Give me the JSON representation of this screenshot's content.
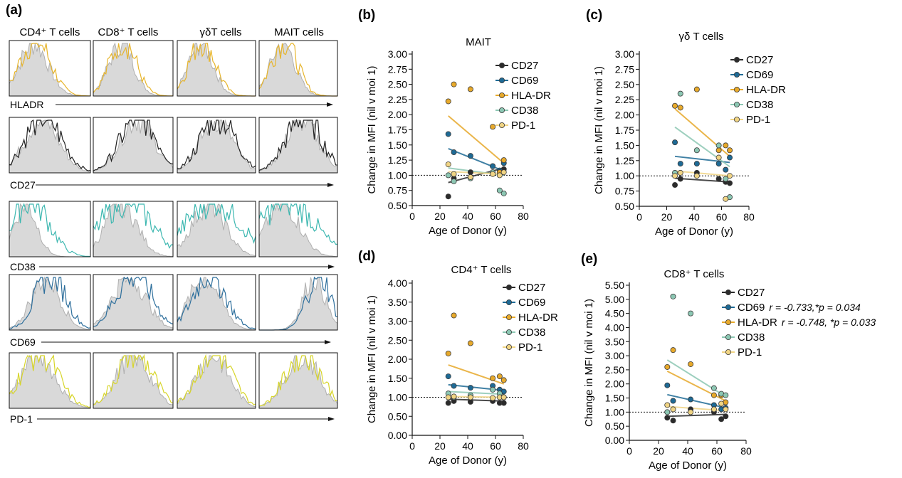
{
  "panel_a": {
    "label": "(a)",
    "column_headers": [
      "CD4⁺ T cells",
      "CD8⁺ T cells",
      "γδT cells",
      "MAIT cells"
    ],
    "row_labels": [
      "HLADR",
      "CD27",
      "CD38",
      "CD69",
      "PD-1"
    ],
    "row_colors": [
      "#e7b52c",
      "#222222",
      "#3cb7b0",
      "#2e6f9c",
      "#d7d52a"
    ],
    "baseline_color": "#b0b0b0"
  },
  "legend_colors": {
    "CD27": "#2b2b2b",
    "CD69": "#1e6a95",
    "HLA-DR": "#e7a92b",
    "CD38": "#8cc7b3",
    "PD-1": "#f0d484"
  },
  "chart_data": [
    {
      "panel": "(b)",
      "type": "scatter",
      "title": "MAIT",
      "xlabel": "Age of Donor (y)",
      "ylabel": "Change in MFI (nil v moi 1)",
      "xlim": [
        0,
        80
      ],
      "ylim": [
        0.5,
        3.0
      ],
      "xticks": [
        "0",
        "20",
        "40",
        "60",
        "80"
      ],
      "yticks": [
        "0.50",
        "0.75",
        "1.00",
        "1.25",
        "1.50",
        "1.75",
        "2.00",
        "2.25",
        "2.50",
        "2.75",
        "3.00"
      ],
      "reference_line": 1.0,
      "legend_position": "top-right",
      "series": [
        {
          "name": "CD27",
          "x": [
            26,
            30,
            42,
            58,
            63,
            66
          ],
          "y": [
            0.65,
            0.95,
            1.05,
            1.15,
            1.05,
            1.1
          ],
          "fit": [
            [
              26,
              0.88
            ],
            [
              66,
              1.12
            ]
          ]
        },
        {
          "name": "CD69",
          "x": [
            26,
            30,
            42,
            58,
            63,
            66
          ],
          "y": [
            1.68,
            1.38,
            1.32,
            1.15,
            1.08,
            1.2
          ],
          "fit": [
            [
              26,
              1.44
            ],
            [
              66,
              1.07
            ]
          ]
        },
        {
          "name": "HLA-DR",
          "x": [
            26,
            30,
            42,
            58,
            63,
            66
          ],
          "y": [
            2.22,
            2.5,
            2.42,
            1.8,
            1.05,
            1.25
          ],
          "fit": [
            [
              26,
              1.98
            ],
            [
              66,
              1.2
            ]
          ]
        },
        {
          "name": "CD38",
          "x": [
            26,
            30,
            42,
            58,
            63,
            66
          ],
          "y": [
            1.0,
            0.9,
            0.95,
            1.05,
            0.75,
            0.7
          ],
          "fit": [
            [
              26,
              1.12
            ],
            [
              66,
              1.0
            ]
          ]
        },
        {
          "name": "PD-1",
          "x": [
            26,
            30,
            42,
            58,
            63,
            66
          ],
          "y": [
            1.18,
            1.02,
            0.97,
            1.02,
            1.0,
            1.05
          ],
          "fit": [
            [
              26,
              1.06
            ],
            [
              66,
              1.02
            ]
          ]
        }
      ],
      "annotations": []
    },
    {
      "panel": "(c)",
      "type": "scatter",
      "title": "γδ T cells",
      "xlabel": "Age of Donor (y)",
      "ylabel": "Change in MFI (nil v moi 1)",
      "xlim": [
        0,
        80
      ],
      "ylim": [
        0.5,
        3.0
      ],
      "xticks": [
        "0",
        "20",
        "40",
        "60",
        "80"
      ],
      "yticks": [
        "0.50",
        "0.75",
        "1.00",
        "1.25",
        "1.50",
        "1.75",
        "2.00",
        "2.25",
        "2.50",
        "2.75",
        "3.00"
      ],
      "reference_line": 1.0,
      "legend_position": "top-right",
      "series": [
        {
          "name": "CD27",
          "x": [
            26,
            30,
            42,
            58,
            63,
            66
          ],
          "y": [
            0.85,
            0.95,
            1.05,
            0.95,
            0.9,
            0.88
          ],
          "fit": [
            [
              26,
              0.96
            ],
            [
              66,
              0.9
            ]
          ]
        },
        {
          "name": "CD69",
          "x": [
            26,
            30,
            42,
            58,
            63,
            66
          ],
          "y": [
            1.55,
            1.2,
            1.2,
            1.2,
            1.1,
            1.3
          ],
          "fit": [
            [
              26,
              1.32
            ],
            [
              66,
              1.22
            ]
          ]
        },
        {
          "name": "HLA-DR",
          "x": [
            26,
            30,
            42,
            58,
            63,
            66
          ],
          "y": [
            2.15,
            2.12,
            2.42,
            1.42,
            1.5,
            1.42
          ],
          "fit": [
            [
              26,
              2.1
            ],
            [
              66,
              1.32
            ]
          ]
        },
        {
          "name": "CD38",
          "x": [
            26,
            30,
            42,
            58,
            63,
            66
          ],
          "y": [
            1.05,
            2.35,
            1.42,
            1.5,
            0.95,
            0.65
          ],
          "fit": [
            [
              26,
              1.8
            ],
            [
              66,
              1.15
            ]
          ]
        },
        {
          "name": "PD-1",
          "x": [
            26,
            30,
            42,
            58,
            63,
            66
          ],
          "y": [
            1.0,
            1.05,
            1.0,
            1.3,
            0.62,
            1.0
          ],
          "fit": [
            [
              26,
              1.08
            ],
            [
              66,
              1.0
            ]
          ]
        }
      ],
      "annotations": []
    },
    {
      "panel": "(d)",
      "type": "scatter",
      "title": "CD4⁺ T cells",
      "xlabel": "Age of Donor (y)",
      "ylabel": "Change in MFI (nil v moi 1)",
      "xlim": [
        0,
        80
      ],
      "ylim": [
        0.0,
        4.0
      ],
      "xticks": [
        "0",
        "20",
        "40",
        "60",
        "80"
      ],
      "yticks": [
        "0.00",
        "0.50",
        "1.00",
        "1.50",
        "2.00",
        "2.50",
        "3.00",
        "3.50",
        "4.00"
      ],
      "reference_line": 1.0,
      "legend_position": "top-right",
      "series": [
        {
          "name": "CD27",
          "x": [
            26,
            30,
            42,
            58,
            63,
            66
          ],
          "y": [
            0.85,
            0.9,
            0.88,
            0.9,
            0.85,
            0.85
          ],
          "fit": [
            [
              26,
              0.95
            ],
            [
              66,
              0.9
            ]
          ]
        },
        {
          "name": "CD69",
          "x": [
            26,
            30,
            42,
            58,
            63,
            66
          ],
          "y": [
            1.55,
            1.3,
            1.25,
            1.3,
            1.2,
            1.15
          ],
          "fit": [
            [
              26,
              1.33
            ],
            [
              66,
              1.18
            ]
          ]
        },
        {
          "name": "HLA-DR",
          "x": [
            26,
            30,
            42,
            58,
            63,
            66
          ],
          "y": [
            2.15,
            3.15,
            2.42,
            1.5,
            1.55,
            1.45
          ],
          "fit": [
            [
              26,
              1.85
            ],
            [
              66,
              1.35
            ]
          ]
        },
        {
          "name": "CD38",
          "x": [
            26,
            30,
            42,
            58,
            63,
            66
          ],
          "y": [
            1.1,
            1.0,
            1.05,
            1.2,
            1.1,
            1.0
          ],
          "fit": [
            [
              26,
              1.15
            ],
            [
              66,
              1.08
            ]
          ]
        },
        {
          "name": "PD-1",
          "x": [
            26,
            30,
            42,
            58,
            63,
            66
          ],
          "y": [
            1.0,
            1.02,
            1.0,
            0.98,
            1.0,
            1.0
          ],
          "fit": [
            [
              26,
              1.02
            ],
            [
              66,
              1.0
            ]
          ]
        }
      ],
      "annotations": []
    },
    {
      "panel": "(e)",
      "type": "scatter",
      "title": "CD8⁺ T cells",
      "xlabel": "Age of Donor (y)",
      "ylabel": "Change in MFI (nil v moi 1)",
      "xlim": [
        0,
        80
      ],
      "ylim": [
        0.0,
        5.5
      ],
      "xticks": [
        "0",
        "20",
        "40",
        "60",
        "80"
      ],
      "yticks": [
        "0.00",
        "0.50",
        "1.00",
        "1.50",
        "2.00",
        "2.50",
        "3.00",
        "3.50",
        "4.00",
        "4.50",
        "5.00",
        "5.50"
      ],
      "reference_line": 1.0,
      "legend_position": "top-right",
      "series": [
        {
          "name": "CD27",
          "x": [
            26,
            30,
            42,
            58,
            63,
            66
          ],
          "y": [
            0.8,
            0.7,
            1.1,
            1.0,
            0.75,
            0.85
          ],
          "fit": [
            [
              26,
              0.85
            ],
            [
              66,
              0.92
            ]
          ]
        },
        {
          "name": "CD69",
          "x": [
            26,
            30,
            42,
            58,
            63,
            66
          ],
          "y": [
            1.95,
            1.4,
            1.45,
            1.25,
            1.1,
            1.15
          ],
          "fit": [
            [
              26,
              1.62
            ],
            [
              66,
              1.15
            ]
          ],
          "stat": "r = -0.733,*p = 0.034"
        },
        {
          "name": "HLA-DR",
          "x": [
            26,
            30,
            42,
            58,
            63,
            66
          ],
          "y": [
            2.6,
            3.2,
            2.7,
            1.6,
            1.6,
            1.35
          ],
          "fit": [
            [
              26,
              2.45
            ],
            [
              66,
              1.4
            ]
          ],
          "stat": "r = -0.748, *p = 0.033"
        },
        {
          "name": "CD38",
          "x": [
            26,
            30,
            42,
            58,
            63,
            66
          ],
          "y": [
            1.0,
            5.1,
            4.5,
            1.85,
            1.65,
            1.6
          ],
          "fit": [
            [
              26,
              2.85
            ],
            [
              66,
              1.55
            ]
          ]
        },
        {
          "name": "PD-1",
          "x": [
            26,
            30,
            42,
            58,
            63,
            66
          ],
          "y": [
            1.25,
            1.1,
            1.0,
            1.1,
            1.3,
            1.1
          ],
          "fit": [
            [
              26,
              1.2
            ],
            [
              66,
              1.05
            ]
          ]
        }
      ],
      "annotations": []
    }
  ]
}
